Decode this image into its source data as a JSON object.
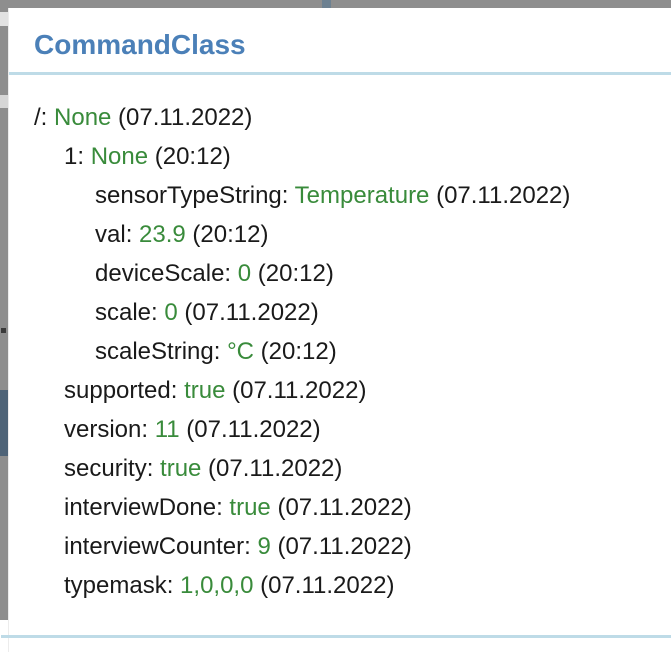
{
  "colors": {
    "title_blue": "#4b80b8",
    "value_green": "#398b3b",
    "text_black": "#1a1a1a",
    "divider_light_blue": "#bedbe7",
    "chrome_gray": "#8e8e8e",
    "chrome_slate": "#4e6377"
  },
  "panel": {
    "title": "CommandClass",
    "entries": [
      {
        "indent": 0,
        "label": "/",
        "value": "None",
        "timestamp": "(07.11.2022)"
      },
      {
        "indent": 1,
        "label": "1",
        "value": "None",
        "timestamp": "(20:12)"
      },
      {
        "indent": 2,
        "label": "sensorTypeString",
        "value": "Temperature",
        "timestamp": "(07.11.2022)"
      },
      {
        "indent": 2,
        "label": "val",
        "value": "23.9",
        "timestamp": "(20:12)"
      },
      {
        "indent": 2,
        "label": "deviceScale",
        "value": "0",
        "timestamp": "(20:12)"
      },
      {
        "indent": 2,
        "label": "scale",
        "value": "0",
        "timestamp": "(07.11.2022)"
      },
      {
        "indent": 2,
        "label": "scaleString",
        "value": "°C",
        "timestamp": "(20:12)"
      },
      {
        "indent": 1,
        "label": "supported",
        "value": "true",
        "timestamp": "(07.11.2022)"
      },
      {
        "indent": 1,
        "label": "version",
        "value": "11",
        "timestamp": "(07.11.2022)"
      },
      {
        "indent": 1,
        "label": "security",
        "value": "true",
        "timestamp": "(07.11.2022)"
      },
      {
        "indent": 1,
        "label": "interviewDone",
        "value": "true",
        "timestamp": "(07.11.2022)"
      },
      {
        "indent": 1,
        "label": "interviewCounter",
        "value": "9",
        "timestamp": "(07.11.2022)"
      },
      {
        "indent": 1,
        "label": "typemask",
        "value": "1,0,0,0",
        "timestamp": "(07.11.2022)"
      }
    ]
  }
}
